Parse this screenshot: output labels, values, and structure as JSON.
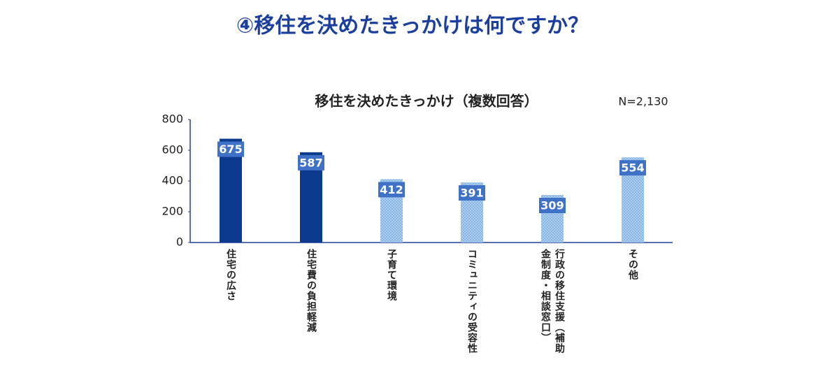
{
  "chart_data": {
    "type": "bar",
    "page_title": "④移住を決めたきっかけは何ですか？",
    "title": "移住を決めたきっかけ（複数回答）",
    "annotation": "N=2,130",
    "categories": [
      "住宅の広さ",
      "住宅費の負担軽減",
      "子育て環境",
      "コミュニティの受容性",
      "行政の移住支援（補助金制度・相談窓口）",
      "その他"
    ],
    "values": [
      675,
      587,
      412,
      391,
      309,
      554
    ],
    "colors": [
      "#0c3a8e",
      "#0c3a8e",
      "#86b6e6",
      "#86b6e6",
      "#86b6e6",
      "#86b6e6"
    ],
    "label_color": "#3f72c6",
    "ylim": [
      0,
      800
    ],
    "yticks": [
      0,
      200,
      400,
      600,
      800
    ],
    "grid": false
  }
}
